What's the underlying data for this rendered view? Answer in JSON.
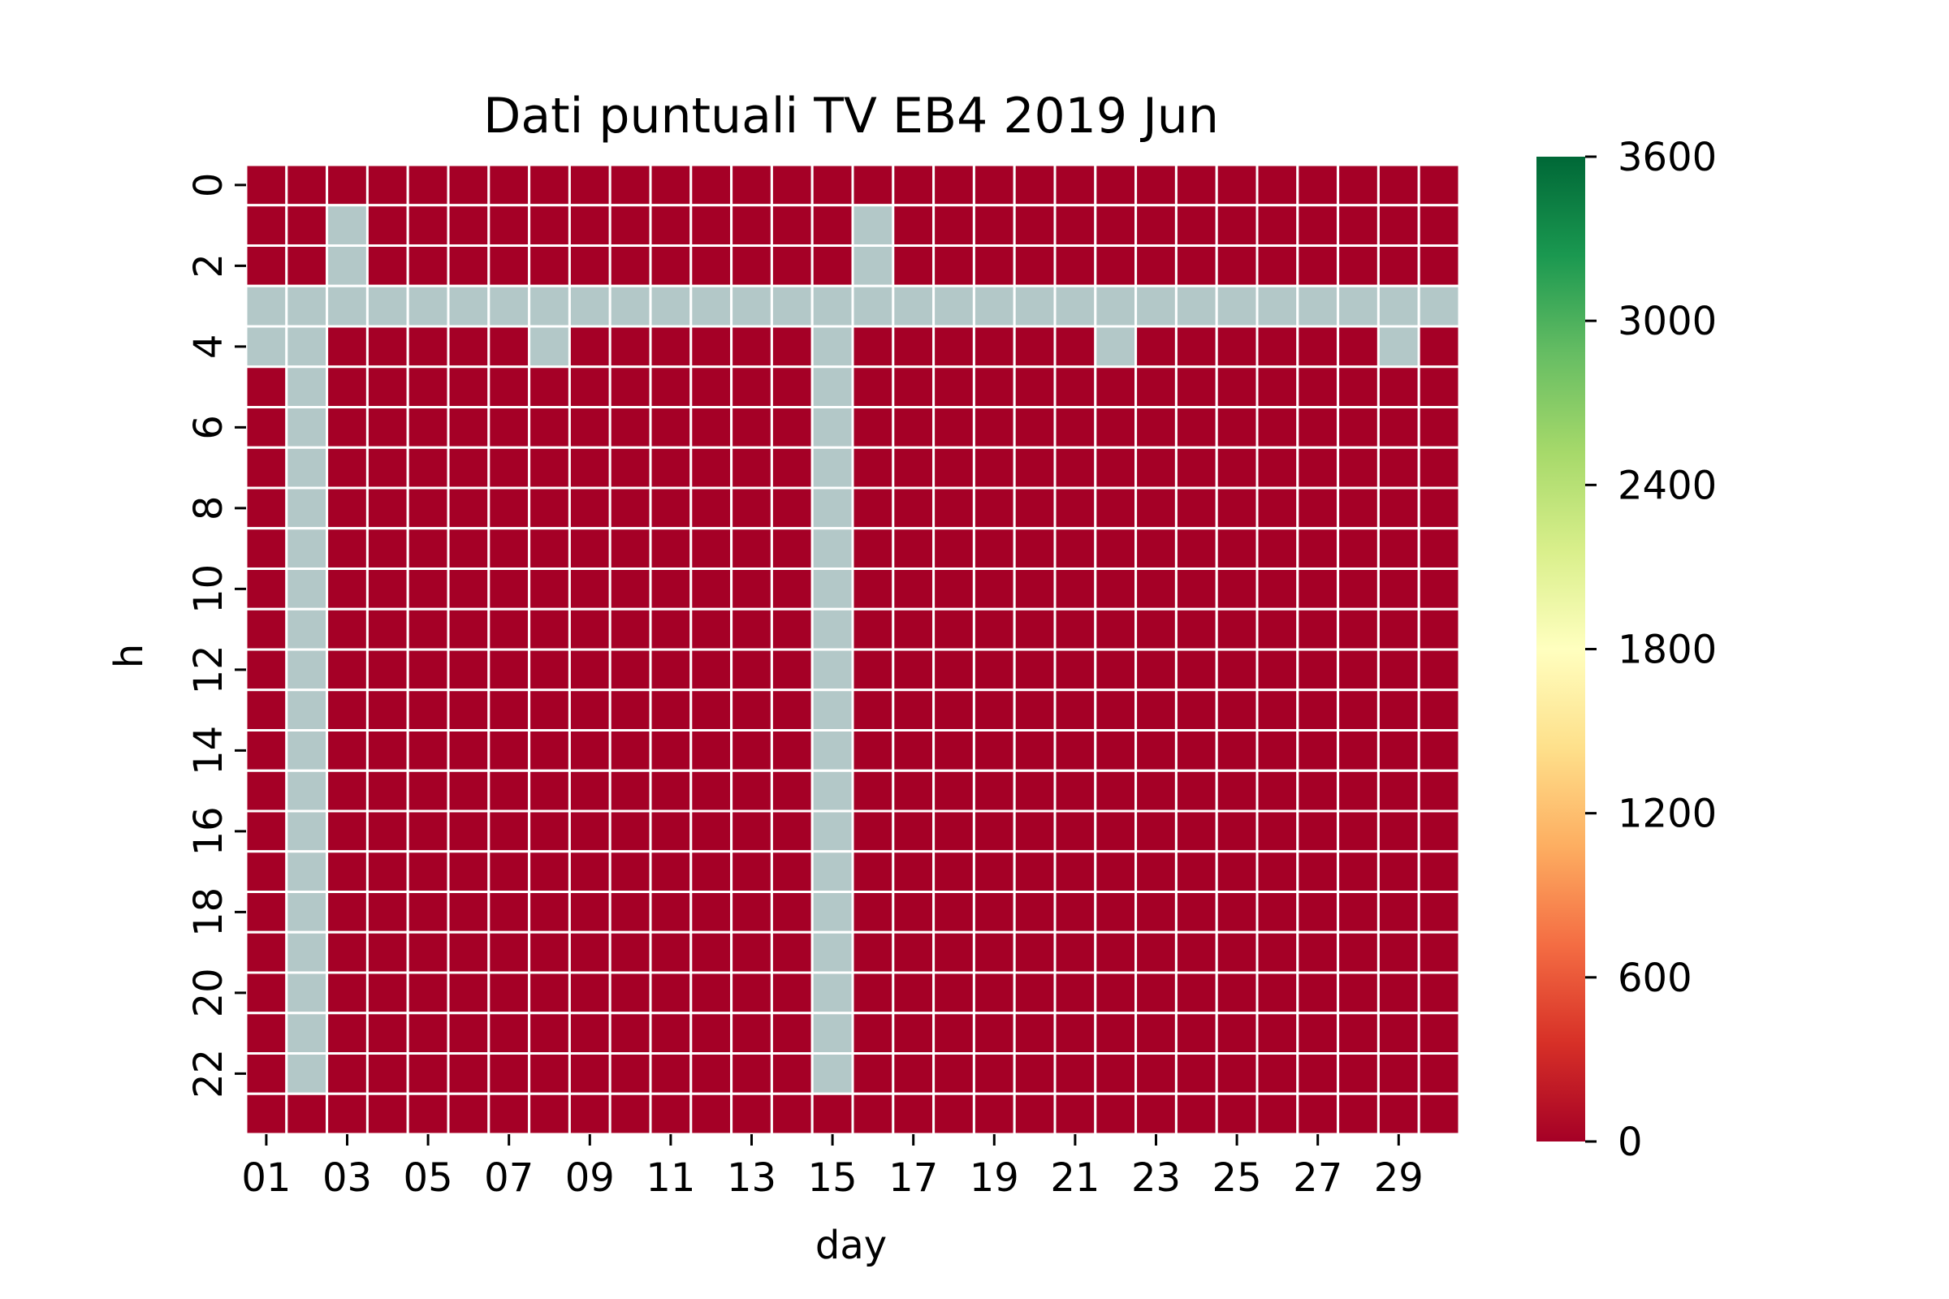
{
  "chart_data": {
    "type": "heatmap",
    "title": "Dati puntuali TV EB4 2019 Jun",
    "xlabel": "day",
    "ylabel": "h",
    "x_categories": [
      "01",
      "02",
      "03",
      "04",
      "05",
      "06",
      "07",
      "08",
      "09",
      "10",
      "11",
      "12",
      "13",
      "14",
      "15",
      "16",
      "17",
      "18",
      "19",
      "20",
      "21",
      "22",
      "23",
      "24",
      "25",
      "26",
      "27",
      "28",
      "29",
      "30"
    ],
    "x_tick_labels": [
      "01",
      "03",
      "05",
      "07",
      "09",
      "11",
      "13",
      "15",
      "17",
      "19",
      "21",
      "23",
      "25",
      "27",
      "29"
    ],
    "y_categories": [
      0,
      1,
      2,
      3,
      4,
      5,
      6,
      7,
      8,
      9,
      10,
      11,
      12,
      13,
      14,
      15,
      16,
      17,
      18,
      19,
      20,
      21,
      22,
      23
    ],
    "y_tick_labels": [
      "0",
      "2",
      "4",
      "6",
      "8",
      "10",
      "12",
      "14",
      "16",
      "18",
      "20",
      "22"
    ],
    "value_default": 0,
    "missing_cells": {
      "note_hours": "missing (NaN) cells shown in grey; listed as [hour, day]",
      "cells": [
        [
          1,
          "03"
        ],
        [
          2,
          "03"
        ],
        [
          1,
          "16"
        ],
        [
          2,
          "16"
        ],
        [
          3,
          "01"
        ],
        [
          3,
          "02"
        ],
        [
          3,
          "03"
        ],
        [
          3,
          "04"
        ],
        [
          3,
          "05"
        ],
        [
          3,
          "06"
        ],
        [
          3,
          "07"
        ],
        [
          3,
          "08"
        ],
        [
          3,
          "09"
        ],
        [
          3,
          "10"
        ],
        [
          3,
          "11"
        ],
        [
          3,
          "12"
        ],
        [
          3,
          "13"
        ],
        [
          3,
          "14"
        ],
        [
          3,
          "15"
        ],
        [
          3,
          "16"
        ],
        [
          3,
          "17"
        ],
        [
          3,
          "18"
        ],
        [
          3,
          "19"
        ],
        [
          3,
          "20"
        ],
        [
          3,
          "21"
        ],
        [
          3,
          "22"
        ],
        [
          3,
          "23"
        ],
        [
          3,
          "24"
        ],
        [
          3,
          "25"
        ],
        [
          3,
          "26"
        ],
        [
          3,
          "27"
        ],
        [
          3,
          "28"
        ],
        [
          3,
          "29"
        ],
        [
          3,
          "30"
        ],
        [
          4,
          "01"
        ],
        [
          4,
          "08"
        ],
        [
          4,
          "22"
        ],
        [
          4,
          "29"
        ],
        [
          4,
          "02"
        ],
        [
          5,
          "02"
        ],
        [
          6,
          "02"
        ],
        [
          7,
          "02"
        ],
        [
          8,
          "02"
        ],
        [
          9,
          "02"
        ],
        [
          10,
          "02"
        ],
        [
          11,
          "02"
        ],
        [
          12,
          "02"
        ],
        [
          13,
          "02"
        ],
        [
          14,
          "02"
        ],
        [
          15,
          "02"
        ],
        [
          16,
          "02"
        ],
        [
          17,
          "02"
        ],
        [
          18,
          "02"
        ],
        [
          19,
          "02"
        ],
        [
          20,
          "02"
        ],
        [
          21,
          "02"
        ],
        [
          22,
          "02"
        ],
        [
          4,
          "15"
        ],
        [
          5,
          "15"
        ],
        [
          6,
          "15"
        ],
        [
          7,
          "15"
        ],
        [
          8,
          "15"
        ],
        [
          9,
          "15"
        ],
        [
          10,
          "15"
        ],
        [
          11,
          "15"
        ],
        [
          12,
          "15"
        ],
        [
          13,
          "15"
        ],
        [
          14,
          "15"
        ],
        [
          15,
          "15"
        ],
        [
          16,
          "15"
        ],
        [
          17,
          "15"
        ],
        [
          18,
          "15"
        ],
        [
          19,
          "15"
        ],
        [
          20,
          "15"
        ],
        [
          21,
          "15"
        ],
        [
          22,
          "15"
        ]
      ]
    },
    "colorbar": {
      "min": 0,
      "max": 3600,
      "ticks": [
        "0",
        "600",
        "1200",
        "1800",
        "2400",
        "3000",
        "3600"
      ],
      "colormap": "RdYlGn"
    },
    "colors": {
      "value_zero": "#a50026",
      "missing": "#b3c8c8",
      "gridline": "#ffffff"
    }
  }
}
